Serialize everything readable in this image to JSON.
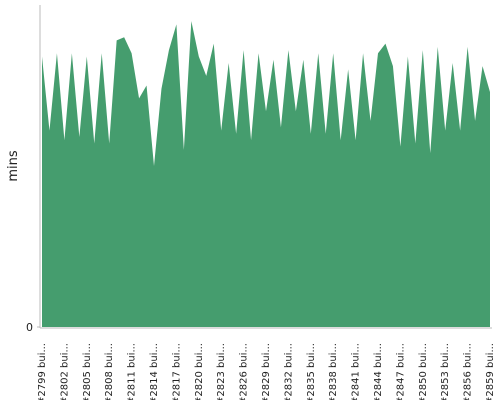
{
  "chart_data": {
    "type": "area",
    "y_label": "mins",
    "color": "#459d6e",
    "ylim": [
      0,
      100
    ],
    "yticks": [
      0
    ],
    "categories": [
      "#2799 bui...",
      null,
      null,
      "#2802 bui...",
      null,
      null,
      "#2805 bui...",
      null,
      null,
      "#2808 bui...",
      null,
      null,
      "#2811 bui...",
      null,
      null,
      "#2814 bui...",
      null,
      null,
      "#2817 bui...",
      null,
      null,
      "#2820 bui...",
      null,
      null,
      "#2823 bui...",
      null,
      null,
      "#2826 bui...",
      null,
      null,
      "#2829 bui...",
      null,
      null,
      "#2832 bui...",
      null,
      null,
      "#2835 bui...",
      null,
      null,
      "#2838 bui...",
      null,
      null,
      "#2841 bui...",
      null,
      null,
      "#2844 bui...",
      null,
      null,
      "#2847 bui...",
      null,
      null,
      "#2850 bui...",
      null,
      null,
      "#2853 bui...",
      null,
      null,
      "#2856 bui...",
      null,
      null,
      "#2859 bui..."
    ],
    "values": [
      84,
      61,
      85,
      58,
      85,
      59,
      84,
      57,
      85,
      57,
      89,
      90,
      85,
      71,
      75,
      50,
      74,
      86,
      94,
      55,
      95,
      84,
      78,
      88,
      61,
      82,
      60,
      86,
      58,
      85,
      67,
      83,
      62,
      86,
      67,
      83,
      60,
      85,
      60,
      85,
      58,
      80,
      58,
      85,
      64,
      85,
      88,
      81,
      56,
      84,
      57,
      86,
      54,
      87,
      61,
      82,
      61,
      87,
      64,
      81,
      73
    ]
  }
}
